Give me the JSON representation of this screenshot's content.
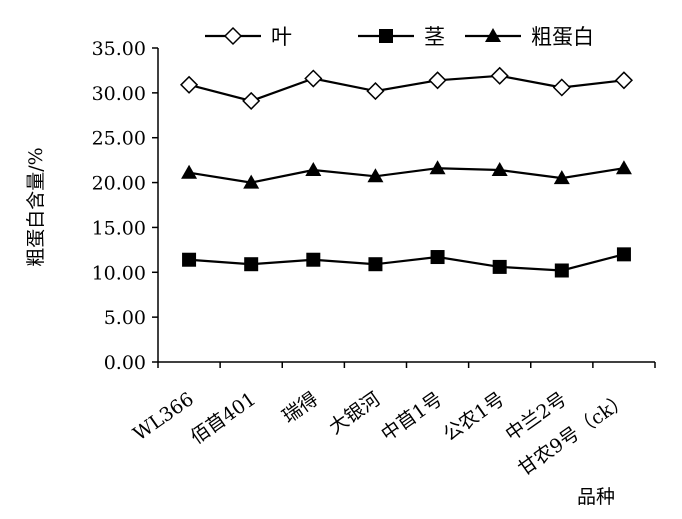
{
  "chart_data": {
    "type": "line",
    "title": "",
    "xlabel": "品种",
    "ylabel": "粗蛋白含量/%",
    "ylim": [
      0,
      35
    ],
    "ytick_labels": [
      "0.00",
      "5.00",
      "10.00",
      "15.00",
      "20.00",
      "25.00",
      "30.00",
      "35.00"
    ],
    "categories": [
      "WL366",
      "佰苜401",
      "瑞得",
      "大银河",
      "中苜1号",
      "公农1号",
      "中兰2号",
      "甘农9号（ck）"
    ],
    "series": [
      {
        "name": "叶",
        "marker": "open-diamond",
        "values": [
          30.9,
          29.1,
          31.6,
          30.2,
          31.4,
          31.9,
          30.6,
          31.4
        ]
      },
      {
        "name": "茎",
        "marker": "filled-square",
        "values": [
          11.4,
          10.9,
          11.4,
          10.9,
          11.7,
          10.6,
          10.2,
          12.0
        ]
      },
      {
        "name": "粗蛋白",
        "marker": "filled-triangle",
        "values": [
          21.1,
          20.0,
          21.4,
          20.7,
          21.6,
          21.4,
          20.5,
          21.6
        ]
      }
    ],
    "legend": "top",
    "grid": false
  }
}
